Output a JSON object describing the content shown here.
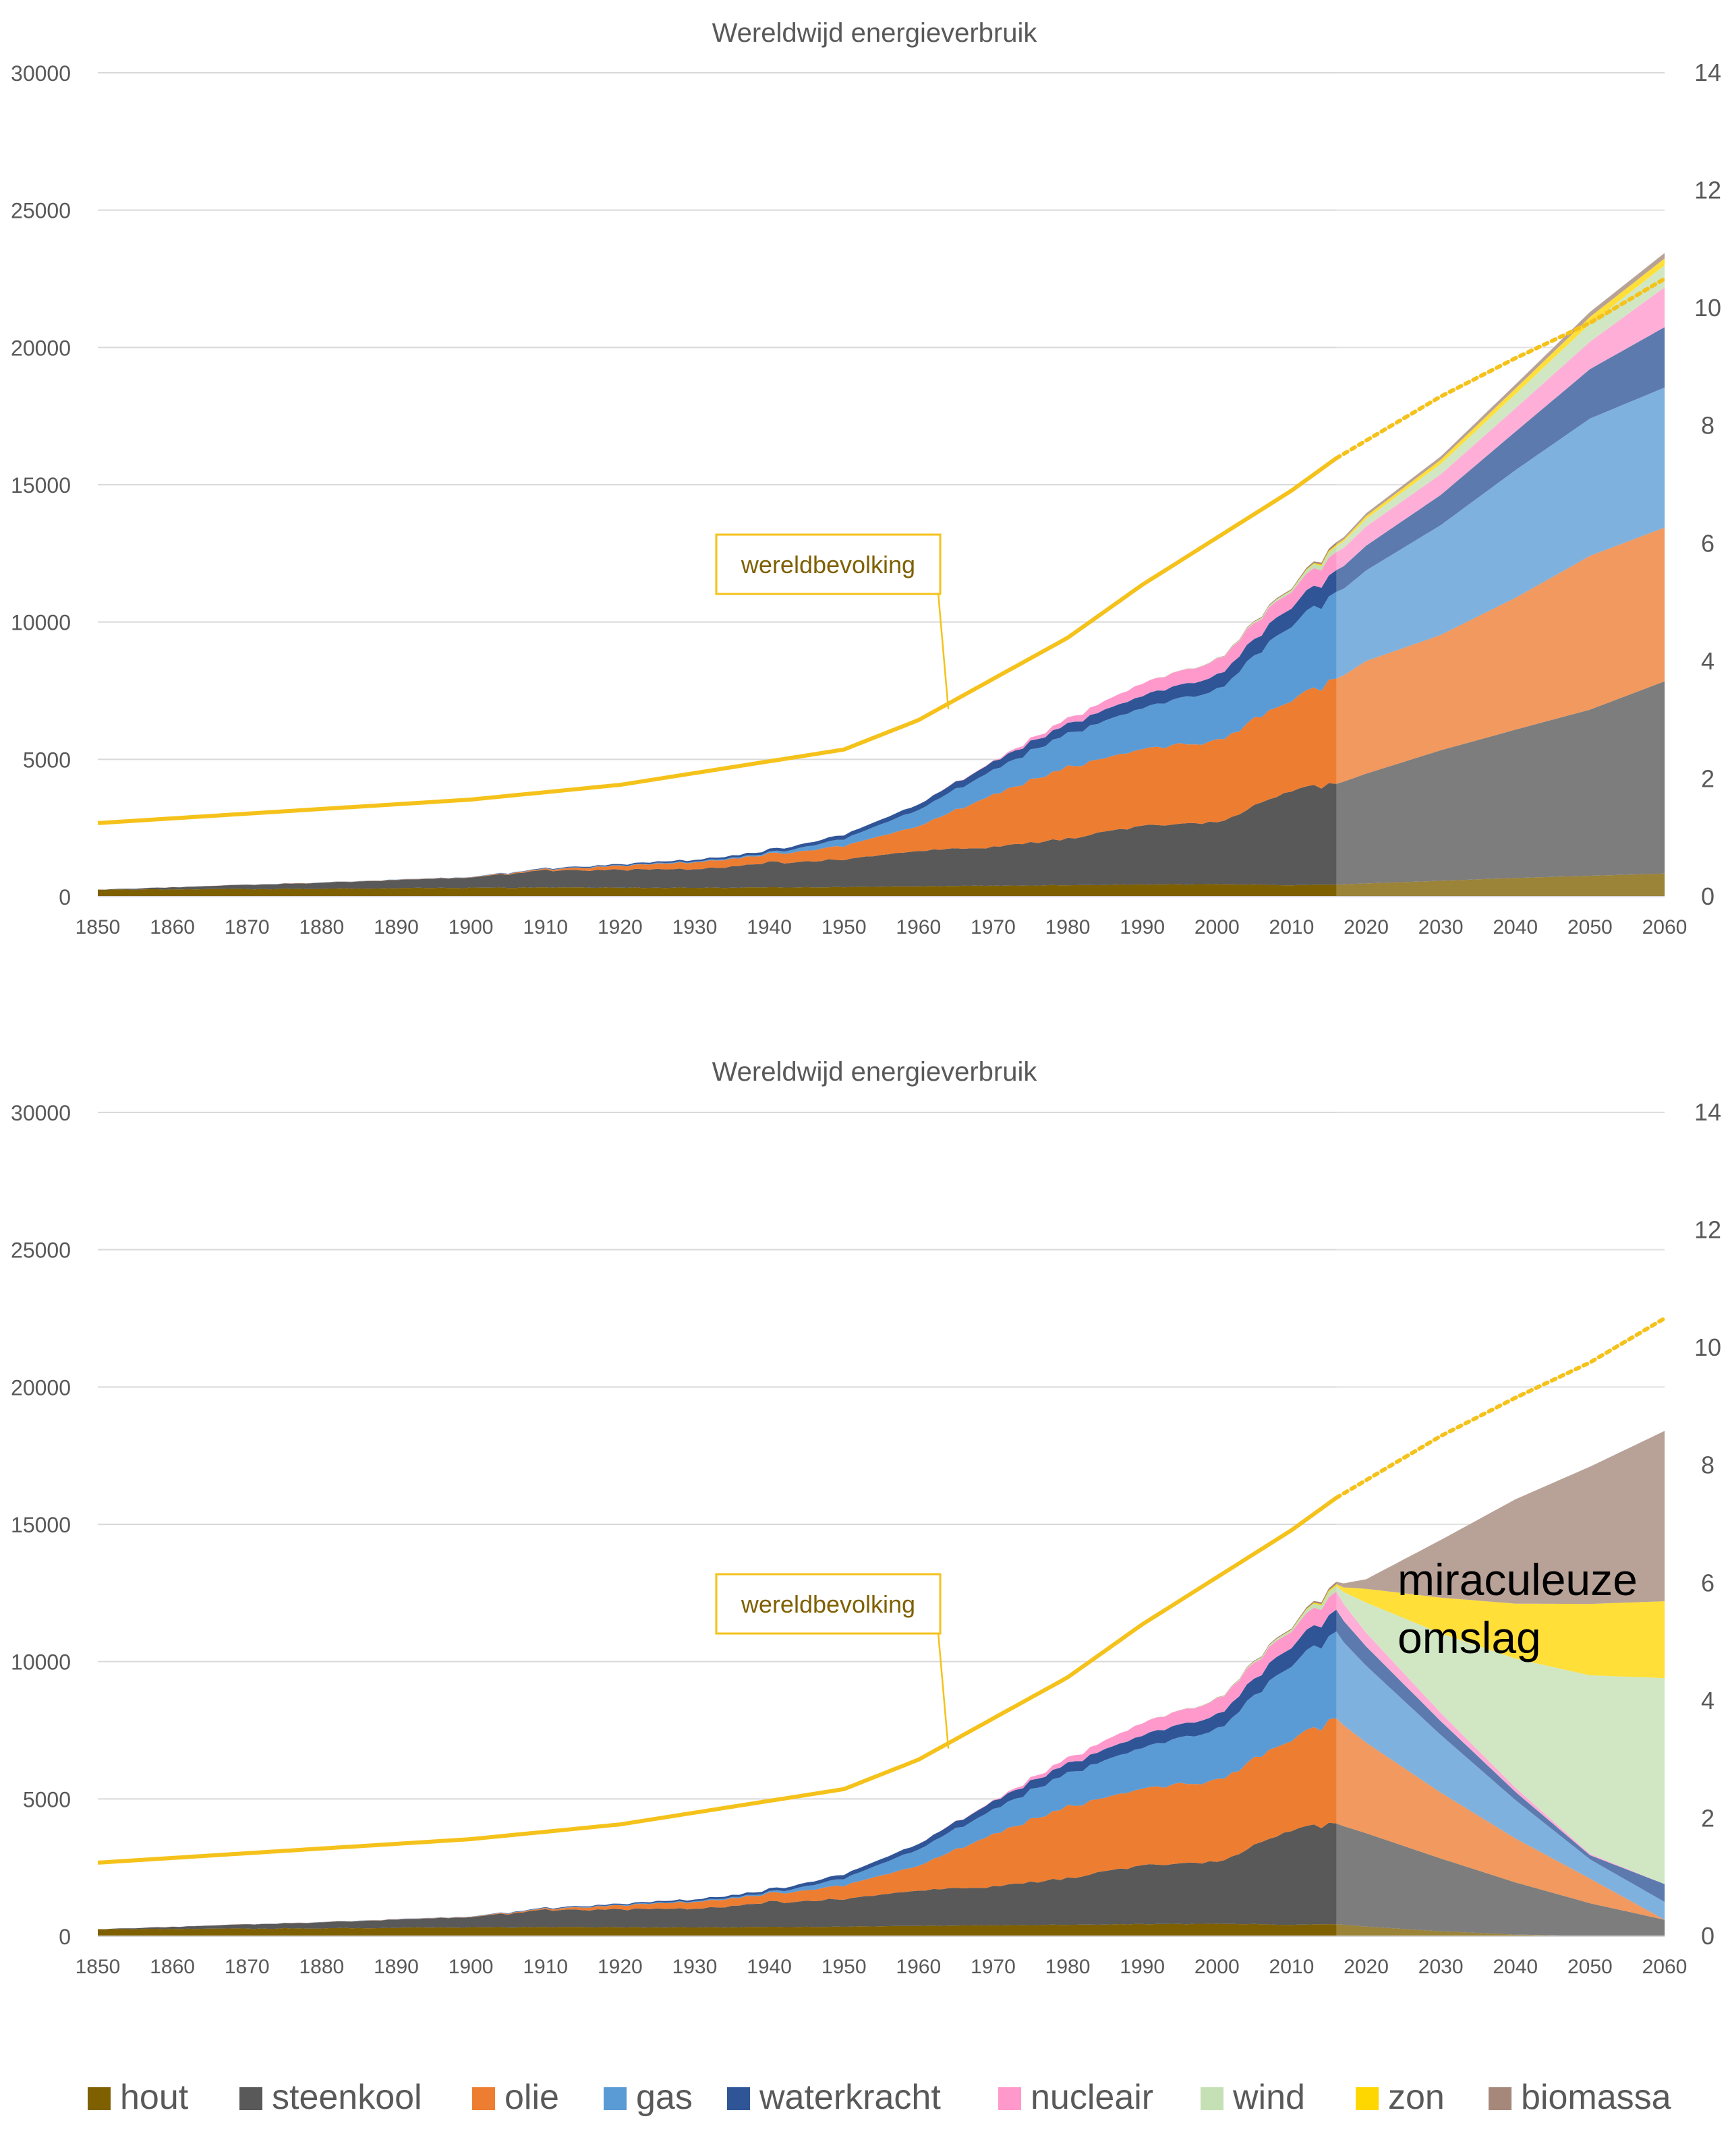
{
  "colors": {
    "hout": "#7F6000",
    "steenkool": "#595959",
    "olie": "#ED7D31",
    "gas": "#5B9BD5",
    "waterkracht": "#2F5597",
    "nucleair": "#FF99CC",
    "wind": "#C5E0B4",
    "zon": "#FFD700",
    "biomassa": "#A5887A",
    "population": "#F5C21B",
    "grid": "#D9D9D9",
    "callout_text": "#7F6000"
  },
  "legend": [
    {
      "name": "hout",
      "icon": "square-swatch-icon"
    },
    {
      "name": "steenkool",
      "icon": "square-swatch-icon"
    },
    {
      "name": "olie",
      "icon": "square-swatch-icon"
    },
    {
      "name": "gas",
      "icon": "square-swatch-icon"
    },
    {
      "name": "waterkracht",
      "icon": "square-swatch-icon"
    },
    {
      "name": "nucleair",
      "icon": "square-swatch-icon"
    },
    {
      "name": "wind",
      "icon": "square-swatch-icon"
    },
    {
      "name": "zon",
      "icon": "square-swatch-icon"
    },
    {
      "name": "biomassa",
      "icon": "square-swatch-icon"
    }
  ],
  "chart_data": [
    {
      "type": "area",
      "title": "Wereldwijd energieverbruik",
      "stacked": true,
      "history_end_year": 2016,
      "xlim": [
        1850,
        2060
      ],
      "x_ticks": [
        1850,
        1860,
        1870,
        1880,
        1890,
        1900,
        1910,
        1920,
        1930,
        1940,
        1950,
        1960,
        1970,
        1980,
        1990,
        2000,
        2010,
        2020,
        2030,
        2040,
        2050,
        2060
      ],
      "ylim": [
        0,
        30000
      ],
      "y_ticks": [
        0,
        5000,
        10000,
        15000,
        20000,
        25000,
        30000
      ],
      "y2lim": [
        0,
        14
      ],
      "y2_ticks": [
        0,
        2,
        4,
        6,
        8,
        10,
        12,
        14
      ],
      "grid": true,
      "x": [
        1850,
        1900,
        1910,
        1930,
        1940,
        1950,
        1960,
        1970,
        1980,
        1990,
        2000,
        2010,
        2016,
        2020,
        2030,
        2040,
        2050,
        2060
      ],
      "series": [
        {
          "name": "hout",
          "values": [
            250,
            320,
            330,
            320,
            330,
            350,
            380,
            400,
            420,
            440,
            450,
            420,
            440,
            480,
            580,
            680,
            760,
            840
          ]
        },
        {
          "name": "steenkool",
          "values": [
            0,
            370,
            620,
            680,
            900,
            1000,
            1300,
            1400,
            1700,
            2150,
            2250,
            3450,
            3650,
            4000,
            4750,
            5400,
            6050,
            7000
          ]
        },
        {
          "name": "olie",
          "values": [
            0,
            10,
            40,
            250,
            300,
            500,
            900,
            1900,
            2600,
            2750,
            3000,
            3250,
            3800,
            4100,
            4200,
            4800,
            5600,
            5600
          ]
        },
        {
          "name": "gas",
          "values": [
            0,
            5,
            10,
            30,
            50,
            250,
            600,
            900,
            1200,
            1500,
            1850,
            2750,
            3100,
            3300,
            4000,
            4650,
            5000,
            5100
          ]
        },
        {
          "name": "waterkracht",
          "values": [
            0,
            5,
            20,
            60,
            100,
            150,
            200,
            300,
            350,
            450,
            520,
            690,
            800,
            900,
            1100,
            1400,
            1800,
            2200
          ]
        },
        {
          "name": "nucleair",
          "values": [
            0,
            0,
            0,
            0,
            0,
            0,
            0,
            20,
            200,
            450,
            560,
            600,
            650,
            700,
            750,
            850,
            1000,
            1450
          ]
        },
        {
          "name": "wind",
          "values": [
            0,
            0,
            0,
            0,
            0,
            0,
            0,
            0,
            0,
            0,
            10,
            80,
            220,
            280,
            380,
            520,
            650,
            800
          ]
        },
        {
          "name": "zon",
          "values": [
            0,
            0,
            0,
            0,
            0,
            0,
            0,
            0,
            0,
            0,
            2,
            10,
            60,
            100,
            150,
            200,
            250,
            250
          ]
        },
        {
          "name": "biomassa",
          "values": [
            0,
            0,
            0,
            0,
            0,
            0,
            0,
            0,
            0,
            0,
            10,
            40,
            80,
            100,
            120,
            150,
            180,
            200
          ]
        }
      ],
      "population": {
        "x": [
          1850,
          1900,
          1920,
          1950,
          1960,
          1970,
          1980,
          1990,
          2000,
          2010,
          2016,
          2020,
          2030,
          2040,
          2050,
          2060
        ],
        "values": [
          1.25,
          1.65,
          1.9,
          2.5,
          3.0,
          3.7,
          4.4,
          5.3,
          6.1,
          6.9,
          7.45,
          7.75,
          8.5,
          9.15,
          9.75,
          10.5
        ],
        "projection_from": 2016
      },
      "callout": "wereldbevolking"
    },
    {
      "type": "area",
      "title": "Wereldwijd energieverbruik",
      "stacked": true,
      "history_end_year": 2016,
      "xlim": [
        1850,
        2060
      ],
      "x_ticks": [
        1850,
        1860,
        1870,
        1880,
        1890,
        1900,
        1910,
        1920,
        1930,
        1940,
        1950,
        1960,
        1970,
        1980,
        1990,
        2000,
        2010,
        2020,
        2030,
        2040,
        2050,
        2060
      ],
      "ylim": [
        0,
        30000
      ],
      "y_ticks": [
        0,
        5000,
        10000,
        15000,
        20000,
        25000,
        30000
      ],
      "y2lim": [
        0,
        14
      ],
      "y2_ticks": [
        0,
        2,
        4,
        6,
        8,
        10,
        12,
        14
      ],
      "grid": true,
      "x": [
        1850,
        1900,
        1910,
        1930,
        1940,
        1950,
        1960,
        1970,
        1980,
        1990,
        2000,
        2010,
        2016,
        2020,
        2030,
        2040,
        2050,
        2060
      ],
      "series": [
        {
          "name": "hout",
          "values": [
            250,
            320,
            330,
            320,
            330,
            350,
            380,
            400,
            420,
            440,
            450,
            420,
            440,
            350,
            180,
            60,
            0,
            0
          ]
        },
        {
          "name": "steenkool",
          "values": [
            0,
            370,
            620,
            680,
            900,
            1000,
            1300,
            1400,
            1700,
            2150,
            2250,
            3450,
            3650,
            3400,
            2650,
            1900,
            1200,
            600
          ]
        },
        {
          "name": "olie",
          "values": [
            0,
            10,
            40,
            250,
            300,
            500,
            900,
            1900,
            2600,
            2750,
            3000,
            3250,
            3800,
            3300,
            2400,
            1600,
            900,
            0
          ]
        },
        {
          "name": "gas",
          "values": [
            0,
            5,
            10,
            30,
            50,
            250,
            600,
            900,
            1200,
            1500,
            1850,
            2750,
            3100,
            2800,
            2100,
            1400,
            700,
            650
          ]
        },
        {
          "name": "waterkracht",
          "values": [
            0,
            5,
            20,
            60,
            100,
            150,
            200,
            300,
            350,
            450,
            520,
            690,
            800,
            700,
            500,
            300,
            150,
            650
          ]
        },
        {
          "name": "nucleair",
          "values": [
            0,
            0,
            0,
            0,
            0,
            0,
            0,
            20,
            200,
            450,
            560,
            600,
            650,
            500,
            300,
            150,
            50,
            0
          ]
        },
        {
          "name": "wind",
          "values": [
            0,
            0,
            0,
            0,
            0,
            0,
            0,
            0,
            0,
            0,
            10,
            80,
            220,
            1100,
            2900,
            4700,
            6500,
            7500
          ]
        },
        {
          "name": "zon",
          "values": [
            0,
            0,
            0,
            0,
            0,
            0,
            0,
            0,
            0,
            0,
            2,
            10,
            60,
            500,
            1300,
            2000,
            2600,
            2800
          ]
        },
        {
          "name": "biomassa",
          "values": [
            0,
            0,
            0,
            0,
            0,
            0,
            0,
            0,
            0,
            0,
            10,
            40,
            80,
            350,
            2100,
            3800,
            5000,
            6200
          ]
        }
      ],
      "population": {
        "x": [
          1850,
          1900,
          1920,
          1950,
          1960,
          1970,
          1980,
          1990,
          2000,
          2010,
          2016,
          2020,
          2030,
          2040,
          2050,
          2060
        ],
        "values": [
          1.25,
          1.65,
          1.9,
          2.5,
          3.0,
          3.7,
          4.4,
          5.3,
          6.1,
          6.9,
          7.45,
          7.75,
          8.5,
          9.15,
          9.75,
          10.5
        ],
        "projection_from": 2016
      },
      "callout": "wereldbevolking",
      "annotation": [
        "miraculeuze",
        "omslag"
      ]
    }
  ]
}
